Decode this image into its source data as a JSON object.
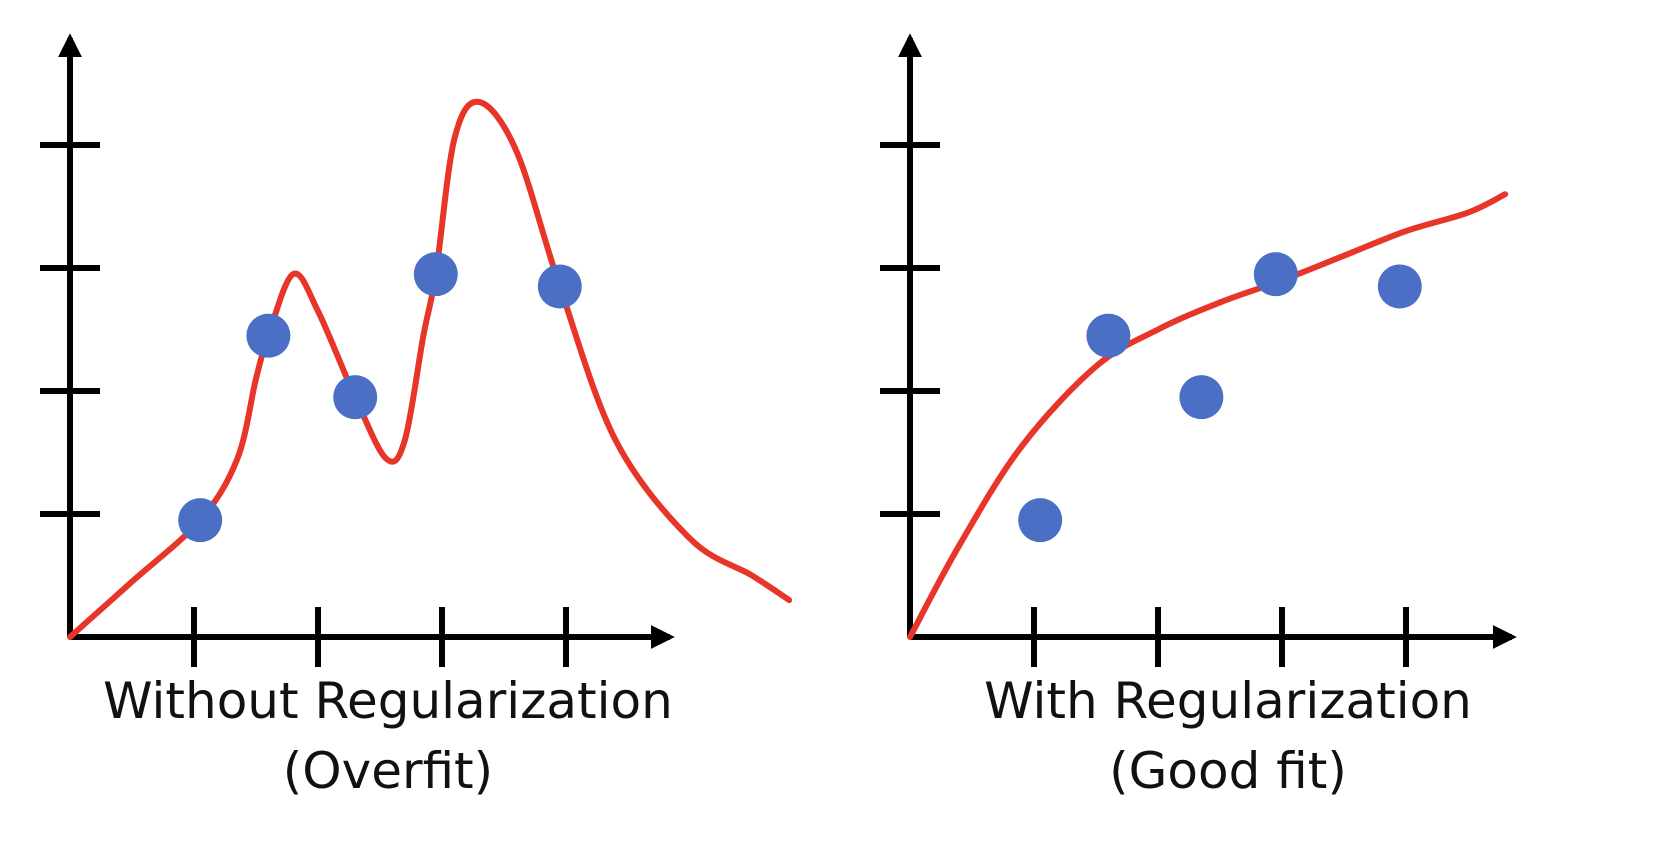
{
  "colors": {
    "axis": "#000000",
    "curve": "#e8352a",
    "points": "#4a6fc5",
    "text": "#111111"
  },
  "chart_data": [
    {
      "type": "scatter",
      "caption_line1": "Without Regularization",
      "caption_line2": "(Overfit)",
      "x_ticks": [
        1,
        2,
        3,
        4
      ],
      "y_ticks": [
        1,
        2,
        3,
        4
      ],
      "xlim": [
        0,
        5
      ],
      "ylim": [
        0,
        5
      ],
      "points": [
        {
          "x": 1.05,
          "y": 0.95
        },
        {
          "x": 1.6,
          "y": 2.45
        },
        {
          "x": 2.3,
          "y": 1.95
        },
        {
          "x": 2.95,
          "y": 2.95
        },
        {
          "x": 3.95,
          "y": 2.85
        }
      ],
      "fit_curve": [
        [
          0,
          0
        ],
        [
          0.5,
          0.45
        ],
        [
          1.05,
          0.95
        ],
        [
          1.35,
          1.45
        ],
        [
          1.5,
          2.1
        ],
        [
          1.6,
          2.45
        ],
        [
          1.8,
          2.95
        ],
        [
          2.0,
          2.65
        ],
        [
          2.3,
          1.95
        ],
        [
          2.55,
          1.45
        ],
        [
          2.7,
          1.6
        ],
        [
          2.85,
          2.45
        ],
        [
          2.95,
          2.95
        ],
        [
          3.1,
          4.05
        ],
        [
          3.3,
          4.35
        ],
        [
          3.6,
          3.95
        ],
        [
          3.95,
          2.85
        ],
        [
          4.4,
          1.6
        ],
        [
          5.0,
          0.8
        ],
        [
          5.5,
          0.5
        ],
        [
          5.8,
          0.3
        ]
      ]
    },
    {
      "type": "scatter",
      "caption_line1": "With Regularization",
      "caption_line2": "(Good fit)",
      "x_ticks": [
        1,
        2,
        3,
        4
      ],
      "y_ticks": [
        1,
        2,
        3,
        4
      ],
      "xlim": [
        0,
        5
      ],
      "ylim": [
        0,
        5
      ],
      "points": [
        {
          "x": 1.05,
          "y": 0.95
        },
        {
          "x": 1.6,
          "y": 2.45
        },
        {
          "x": 2.35,
          "y": 1.95
        },
        {
          "x": 2.95,
          "y": 2.95
        },
        {
          "x": 3.95,
          "y": 2.85
        }
      ],
      "fit_curve": [
        [
          0,
          0
        ],
        [
          0.4,
          0.75
        ],
        [
          0.9,
          1.55
        ],
        [
          1.5,
          2.2
        ],
        [
          2.0,
          2.5
        ],
        [
          2.5,
          2.72
        ],
        [
          3.0,
          2.9
        ],
        [
          3.5,
          3.1
        ],
        [
          4.0,
          3.3
        ],
        [
          4.5,
          3.45
        ],
        [
          4.8,
          3.6
        ]
      ]
    }
  ]
}
